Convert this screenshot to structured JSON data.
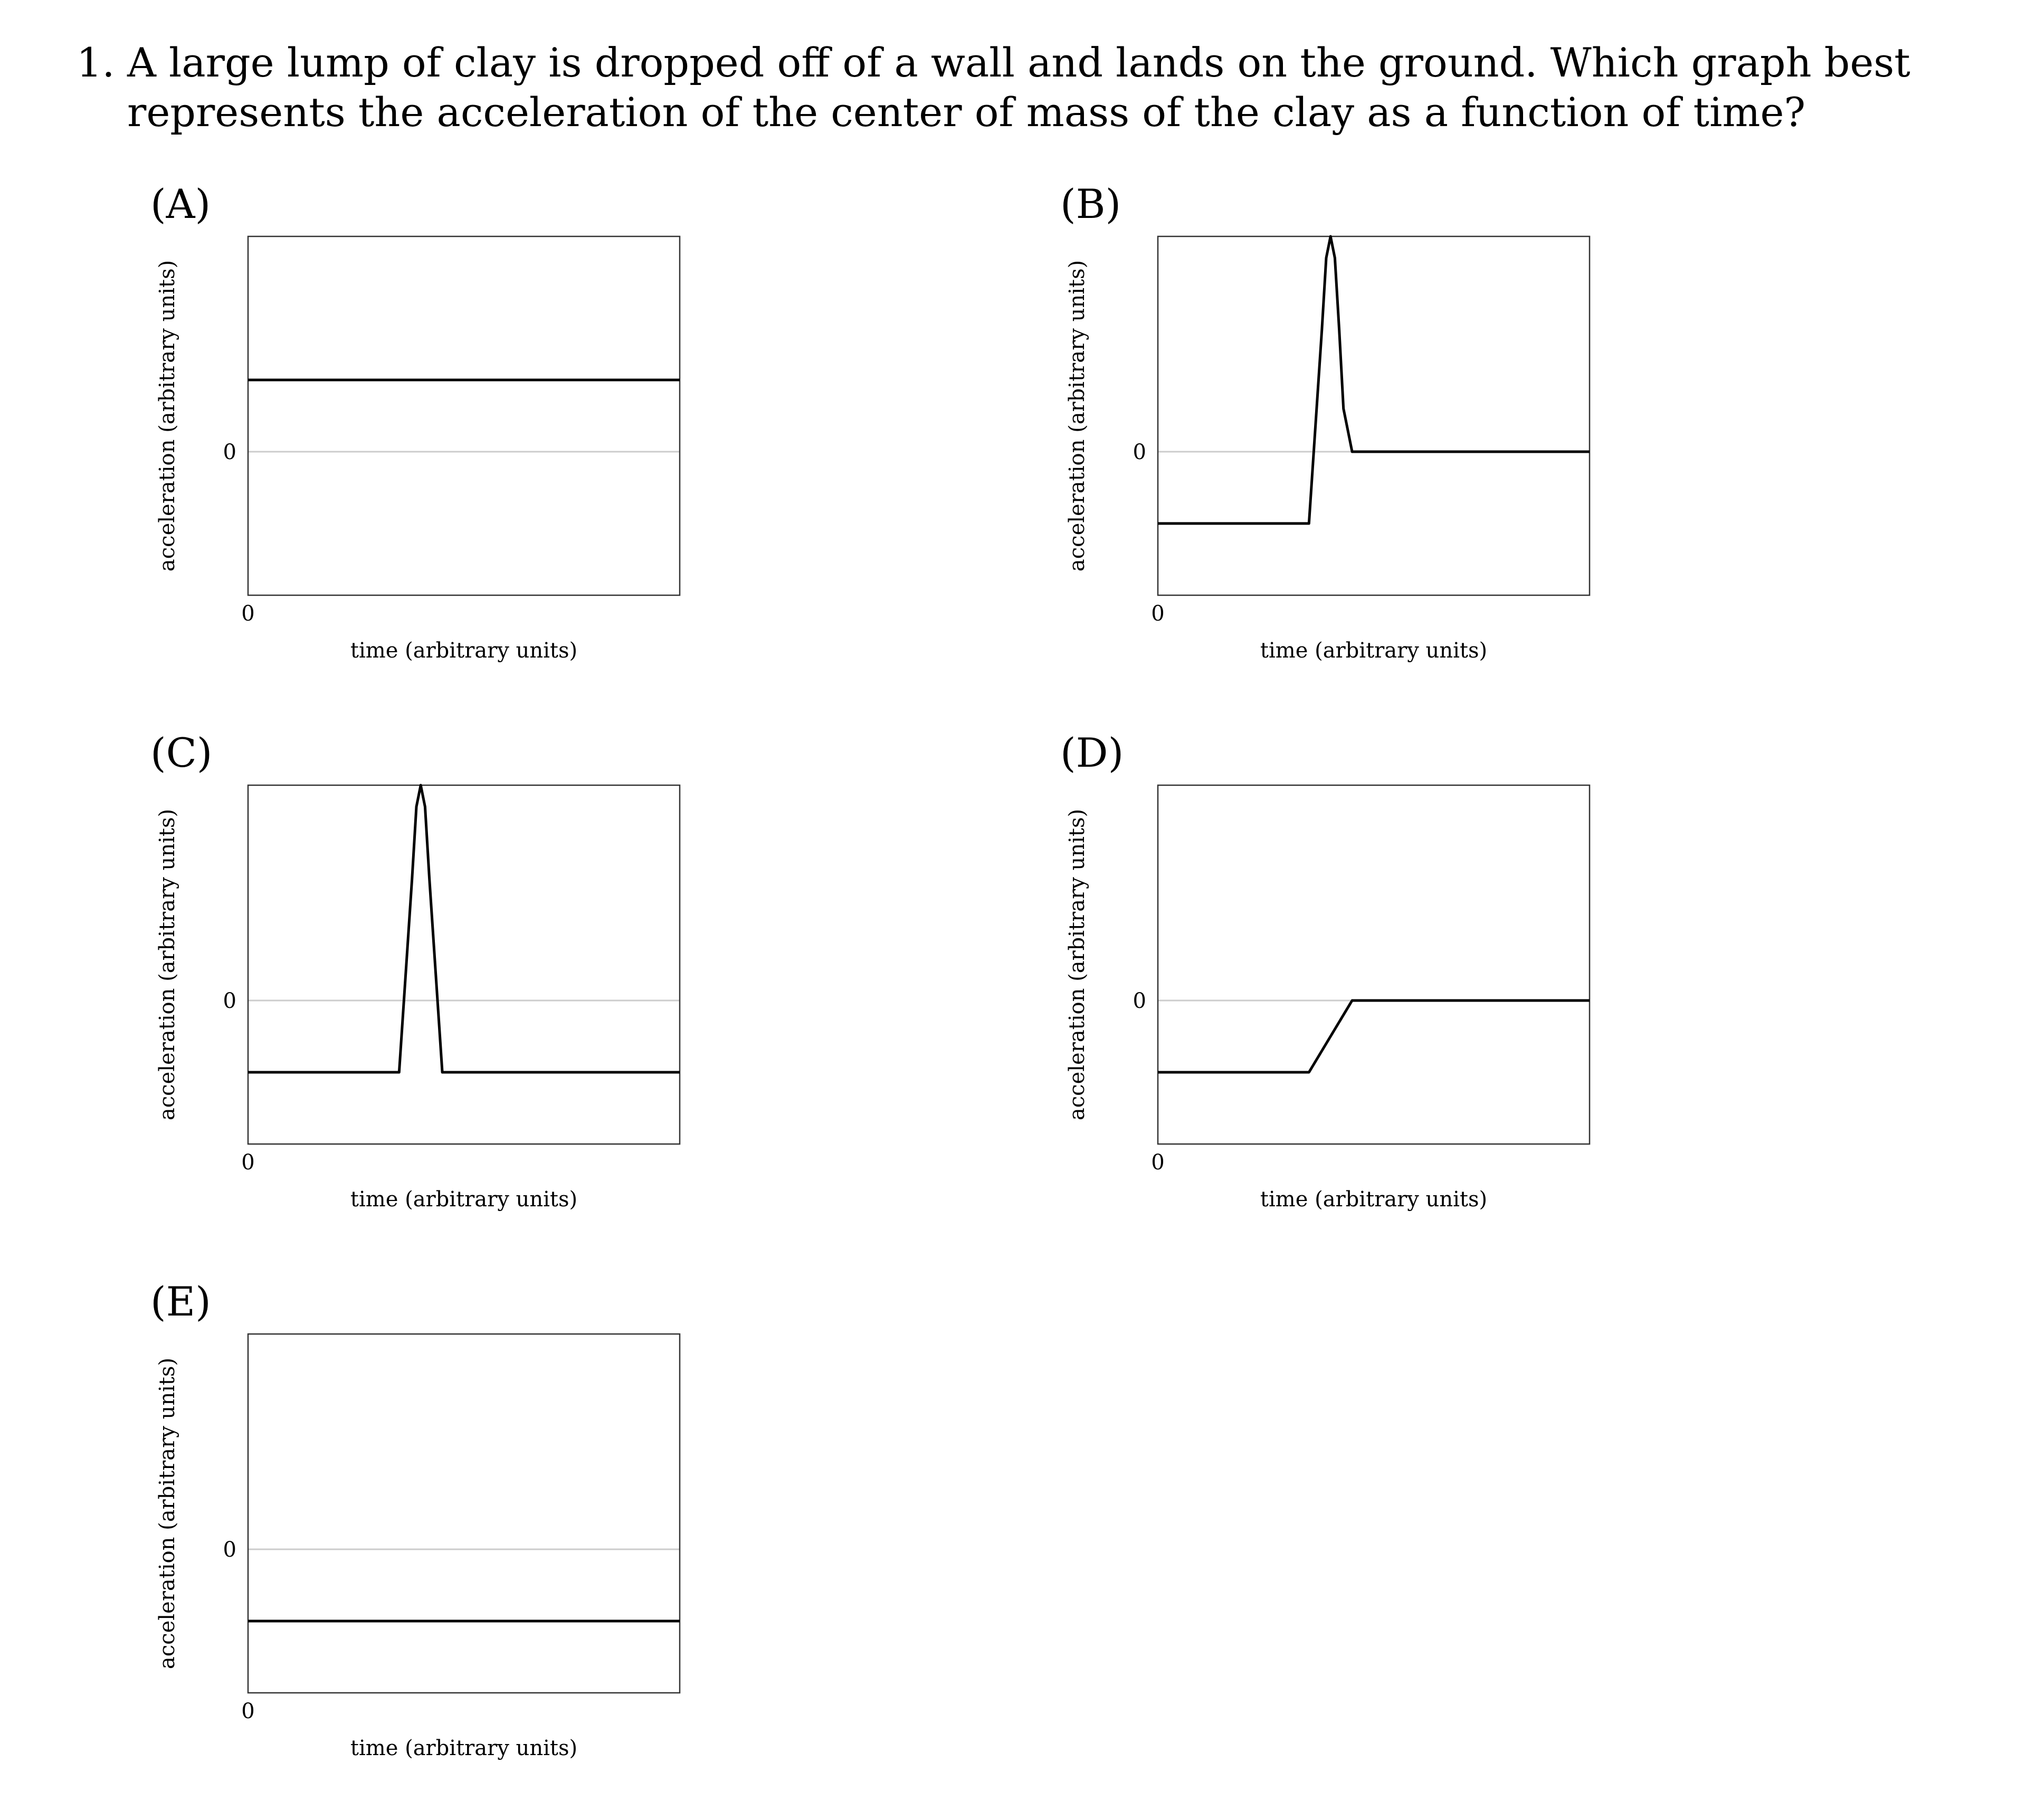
{
  "question": {
    "number": "1.",
    "text": "A large lump of clay is dropped off of a wall and lands on the ground. Which graph best represents the acceleration of the center of mass of the clay as a function of time?"
  },
  "colors": {
    "line": "#000000",
    "zero_line": "#cccccc",
    "frame": "#333333"
  },
  "options": [
    {
      "label": "(A)"
    },
    {
      "label": "(B)"
    },
    {
      "label": "(C)"
    },
    {
      "label": "(D)"
    },
    {
      "label": "(E)"
    }
  ],
  "chart_data": [
    {
      "type": "line",
      "option": "(A)",
      "xlabel": "time (arbitrary units)",
      "ylabel": "acceleration (arbitrary units)",
      "x_tick_labels": [
        "0"
      ],
      "y_tick_labels": [
        "0"
      ],
      "xlim": [
        0,
        10
      ],
      "ylim": [
        -1,
        1.5
      ],
      "grid": false,
      "zero_line": true,
      "x": [
        0,
        10
      ],
      "y": [
        0.5,
        0.5
      ]
    },
    {
      "type": "line",
      "option": "(B)",
      "xlabel": "time (arbitrary units)",
      "ylabel": "acceleration (arbitrary units)",
      "x_tick_labels": [
        "0"
      ],
      "y_tick_labels": [
        "0"
      ],
      "xlim": [
        0,
        10
      ],
      "ylim": [
        -1,
        1.5
      ],
      "grid": false,
      "zero_line": true,
      "x": [
        0,
        3.5,
        3.8,
        3.9,
        4.0,
        4.1,
        4.2,
        4.3,
        4.5,
        10
      ],
      "y": [
        -0.5,
        -0.5,
        0.85,
        1.35,
        1.5,
        1.35,
        0.85,
        0.3,
        0,
        0
      ]
    },
    {
      "type": "line",
      "option": "(C)",
      "xlabel": "time (arbitrary units)",
      "ylabel": "acceleration (arbitrary units)",
      "x_tick_labels": [
        "0"
      ],
      "y_tick_labels": [
        "0"
      ],
      "xlim": [
        0,
        10
      ],
      "ylim": [
        -1,
        1.5
      ],
      "grid": false,
      "zero_line": true,
      "x": [
        0,
        3.5,
        3.8,
        3.9,
        4.0,
        4.1,
        4.2,
        4.5,
        10
      ],
      "y": [
        -0.5,
        -0.5,
        0.85,
        1.35,
        1.5,
        1.35,
        0.85,
        -0.5,
        -0.5
      ]
    },
    {
      "type": "line",
      "option": "(D)",
      "xlabel": "time (arbitrary units)",
      "ylabel": "acceleration (arbitrary units)",
      "x_tick_labels": [
        "0"
      ],
      "y_tick_labels": [
        "0"
      ],
      "xlim": [
        0,
        10
      ],
      "ylim": [
        -1,
        1.5
      ],
      "grid": false,
      "zero_line": true,
      "x": [
        0,
        3.5,
        4.5,
        10
      ],
      "y": [
        -0.5,
        -0.5,
        0,
        0
      ]
    },
    {
      "type": "line",
      "option": "(E)",
      "xlabel": "time (arbitrary units)",
      "ylabel": "acceleration (arbitrary units)",
      "x_tick_labels": [
        "0"
      ],
      "y_tick_labels": [
        "0"
      ],
      "xlim": [
        0,
        10
      ],
      "ylim": [
        -1,
        1.5
      ],
      "grid": false,
      "zero_line": true,
      "x": [
        0,
        10
      ],
      "y": [
        -0.5,
        -0.5
      ]
    }
  ]
}
